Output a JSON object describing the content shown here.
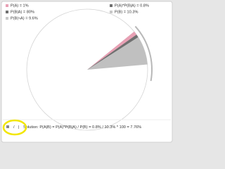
{
  "legend": [
    {
      "label": "P(A) = 1%",
      "color": "#e8a0b4"
    },
    {
      "label": "P(B|A) = 80%",
      "color": "#707070"
    },
    {
      "label": "P(B|¬A) = 9.6%",
      "color": "#c8c8c8"
    },
    {
      "label": "P(A)*P(B|A) = 0.8%",
      "color": "#707070"
    },
    {
      "label": "P(B) = 10.3%",
      "color": "#c8c8c8"
    }
  ],
  "toolbar": {
    "slash": "/",
    "bar": "|"
  },
  "solution": "Solution: P(A|B) = P(A)*P(B|A) / P(B) = 0.8% / 10.3% * 100 = 7.76%"
}
